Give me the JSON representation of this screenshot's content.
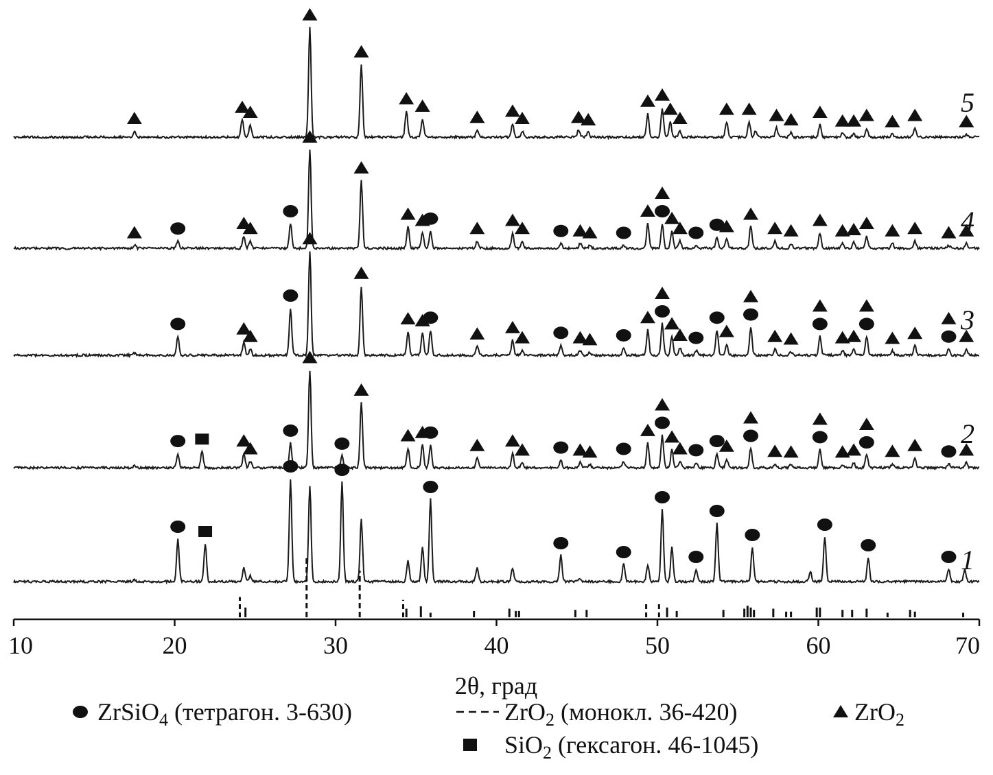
{
  "chart_data": {
    "type": "line",
    "xlabel": "2θ, град",
    "x_range": [
      10,
      70
    ],
    "x_ticks": [
      10,
      20,
      30,
      40,
      50,
      60,
      70
    ],
    "grid": false,
    "legend": [
      {
        "symbol": "circle",
        "text_main": "ZrSiO",
        "sub": "4",
        "text_rest": " (тетрагон. 3-630)"
      },
      {
        "symbol": "dashed-line",
        "text_main": "ZrO",
        "sub": "2",
        "text_rest": " (монокл. 36-420)"
      },
      {
        "symbol": "triangle",
        "text_main": "ZrO",
        "sub": "2",
        "text_rest": ""
      },
      {
        "symbol": "square",
        "text_main": "SiO",
        "sub": "2",
        "text_rest": " (гексагон. 46-1045)"
      }
    ],
    "series": [
      {
        "name": "1",
        "peaks": [
          [
            17.5,
            3
          ],
          [
            20.2,
            62
          ],
          [
            21.9,
            55
          ],
          [
            24.3,
            20
          ],
          [
            24.7,
            8
          ],
          [
            27.2,
            150
          ],
          [
            28.4,
            140
          ],
          [
            30.4,
            145
          ],
          [
            31.6,
            90
          ],
          [
            34.5,
            30
          ],
          [
            35.4,
            50
          ],
          [
            35.9,
            120
          ],
          [
            38.8,
            20
          ],
          [
            41.0,
            20
          ],
          [
            44.0,
            38
          ],
          [
            45.2,
            5
          ],
          [
            47.9,
            25
          ],
          [
            49.4,
            25
          ],
          [
            50.3,
            105
          ],
          [
            50.9,
            50
          ],
          [
            52.4,
            18
          ],
          [
            53.7,
            85
          ],
          [
            55.9,
            50
          ],
          [
            59.5,
            15
          ],
          [
            60.4,
            65
          ],
          [
            63.1,
            35
          ],
          [
            68.1,
            18
          ],
          [
            69.1,
            18
          ]
        ],
        "circles": [
          20.2,
          27.2,
          30.4,
          35.9,
          44.0,
          47.9,
          50.3,
          52.4,
          53.7,
          55.9,
          60.4,
          63.1,
          68.1
        ],
        "triangles": [],
        "squares": [
          21.9
        ]
      },
      {
        "name": "2",
        "peaks": [
          [
            17.5,
            3
          ],
          [
            20.2,
            22
          ],
          [
            21.7,
            25
          ],
          [
            24.3,
            22
          ],
          [
            24.7,
            10
          ],
          [
            27.2,
            38
          ],
          [
            28.4,
            150
          ],
          [
            30.4,
            18
          ],
          [
            31.6,
            100
          ],
          [
            34.5,
            30
          ],
          [
            35.4,
            35
          ],
          [
            35.9,
            35
          ],
          [
            38.8,
            15
          ],
          [
            41.0,
            22
          ],
          [
            41.6,
            8
          ],
          [
            44.0,
            12
          ],
          [
            45.2,
            8
          ],
          [
            45.8,
            5
          ],
          [
            47.9,
            10
          ],
          [
            49.4,
            38
          ],
          [
            50.3,
            50
          ],
          [
            50.9,
            28
          ],
          [
            51.4,
            10
          ],
          [
            52.4,
            8
          ],
          [
            53.7,
            22
          ],
          [
            54.3,
            14
          ],
          [
            55.8,
            30
          ],
          [
            57.3,
            6
          ],
          [
            58.3,
            5
          ],
          [
            60.1,
            28
          ],
          [
            61.5,
            5
          ],
          [
            62.2,
            8
          ],
          [
            63.0,
            20
          ],
          [
            64.6,
            6
          ],
          [
            66.0,
            15
          ],
          [
            68.1,
            6
          ],
          [
            69.2,
            8
          ]
        ],
        "circles": [
          20.2,
          27.2,
          30.4,
          35.9,
          44.0,
          47.9,
          50.3,
          52.4,
          53.7,
          55.8,
          60.1,
          63.0,
          68.1
        ],
        "triangles": [
          24.3,
          24.7,
          28.4,
          31.6,
          34.5,
          35.4,
          38.8,
          41.0,
          41.6,
          45.2,
          45.8,
          49.4,
          50.3,
          50.9,
          51.4,
          54.3,
          55.8,
          57.3,
          58.3,
          60.1,
          61.5,
          62.2,
          63.0,
          64.6,
          66.0,
          69.2
        ],
        "squares": [
          21.7
        ]
      },
      {
        "name": "3",
        "peaks": [
          [
            17.5,
            3
          ],
          [
            20.2,
            30
          ],
          [
            24.3,
            22
          ],
          [
            24.7,
            10
          ],
          [
            27.2,
            75
          ],
          [
            28.4,
            165
          ],
          [
            31.6,
            110
          ],
          [
            34.5,
            38
          ],
          [
            35.4,
            35
          ],
          [
            35.9,
            40
          ],
          [
            38.8,
            14
          ],
          [
            41.0,
            24
          ],
          [
            41.6,
            8
          ],
          [
            44.0,
            16
          ],
          [
            45.2,
            8
          ],
          [
            45.8,
            5
          ],
          [
            47.9,
            12
          ],
          [
            49.4,
            40
          ],
          [
            50.3,
            50
          ],
          [
            50.9,
            30
          ],
          [
            51.4,
            12
          ],
          [
            52.4,
            8
          ],
          [
            53.7,
            40
          ],
          [
            54.3,
            18
          ],
          [
            55.8,
            45
          ],
          [
            57.3,
            10
          ],
          [
            58.3,
            6
          ],
          [
            60.1,
            30
          ],
          [
            61.5,
            8
          ],
          [
            62.2,
            10
          ],
          [
            63.0,
            30
          ],
          [
            64.6,
            7
          ],
          [
            66.0,
            15
          ],
          [
            68.1,
            10
          ],
          [
            69.2,
            10
          ]
        ],
        "circles": [
          20.2,
          27.2,
          35.9,
          44.0,
          47.9,
          50.3,
          52.4,
          53.7,
          55.8,
          60.1,
          63.0,
          68.1
        ],
        "triangles": [
          24.3,
          24.7,
          28.4,
          31.6,
          34.5,
          35.4,
          38.8,
          41.0,
          41.6,
          45.2,
          45.8,
          49.4,
          50.3,
          50.9,
          51.4,
          54.3,
          55.8,
          57.3,
          58.3,
          60.1,
          61.5,
          62.2,
          63.0,
          64.6,
          66.0,
          68.1,
          69.2
        ],
        "squares": []
      },
      {
        "name": "4",
        "peaks": [
          [
            17.5,
            5
          ],
          [
            20.2,
            12
          ],
          [
            24.3,
            20
          ],
          [
            24.7,
            12
          ],
          [
            27.2,
            40
          ],
          [
            28.4,
            160
          ],
          [
            31.6,
            110
          ],
          [
            34.5,
            35
          ],
          [
            35.4,
            25
          ],
          [
            35.9,
            28
          ],
          [
            38.8,
            12
          ],
          [
            41.0,
            25
          ],
          [
            41.6,
            12
          ],
          [
            44.0,
            8
          ],
          [
            45.2,
            8
          ],
          [
            45.8,
            5
          ],
          [
            47.9,
            5
          ],
          [
            49.4,
            40
          ],
          [
            50.3,
            40
          ],
          [
            50.9,
            28
          ],
          [
            51.4,
            12
          ],
          [
            52.4,
            5
          ],
          [
            53.7,
            18
          ],
          [
            54.3,
            15
          ],
          [
            55.8,
            35
          ],
          [
            57.3,
            12
          ],
          [
            58.3,
            8
          ],
          [
            60.1,
            25
          ],
          [
            61.5,
            8
          ],
          [
            62.2,
            10
          ],
          [
            63.0,
            20
          ],
          [
            64.6,
            8
          ],
          [
            66.0,
            12
          ],
          [
            68.1,
            5
          ],
          [
            69.2,
            8
          ]
        ],
        "circles": [
          20.2,
          27.2,
          35.9,
          44.0,
          47.9,
          50.3,
          52.4,
          53.7
        ],
        "triangles": [
          17.5,
          24.3,
          24.7,
          28.4,
          31.6,
          34.5,
          35.4,
          38.8,
          41.0,
          41.6,
          45.2,
          45.8,
          49.4,
          50.3,
          50.9,
          51.4,
          54.3,
          55.8,
          57.3,
          58.3,
          60.1,
          61.5,
          62.2,
          63.0,
          64.6,
          66.0,
          68.1,
          69.2
        ],
        "squares": []
      },
      {
        "name": "5",
        "peaks": [
          [
            17.5,
            10
          ],
          [
            24.2,
            28
          ],
          [
            24.7,
            20
          ],
          [
            28.4,
            178
          ],
          [
            31.6,
            118
          ],
          [
            34.4,
            42
          ],
          [
            35.4,
            30
          ],
          [
            38.8,
            12
          ],
          [
            41.0,
            22
          ],
          [
            41.6,
            10
          ],
          [
            45.1,
            12
          ],
          [
            45.7,
            8
          ],
          [
            49.4,
            38
          ],
          [
            50.3,
            48
          ],
          [
            50.8,
            25
          ],
          [
            51.4,
            10
          ],
          [
            54.3,
            25
          ],
          [
            55.7,
            25
          ],
          [
            56.1,
            10
          ],
          [
            57.4,
            15
          ],
          [
            58.3,
            8
          ],
          [
            60.1,
            20
          ],
          [
            61.5,
            6
          ],
          [
            62.2,
            6
          ],
          [
            63.0,
            15
          ],
          [
            64.6,
            5
          ],
          [
            66.0,
            15
          ],
          [
            69.2,
            5
          ]
        ],
        "circles": [],
        "triangles": [
          17.5,
          24.2,
          24.7,
          28.4,
          31.6,
          34.4,
          35.4,
          38.8,
          41.0,
          41.6,
          45.1,
          45.7,
          49.4,
          50.3,
          50.8,
          51.4,
          54.3,
          55.7,
          57.4,
          58.3,
          60.1,
          61.5,
          62.2,
          63.0,
          64.6,
          66.0,
          69.2
        ],
        "squares": []
      }
    ],
    "reference_sticks": [
      [
        24.05,
        30
      ],
      [
        24.4,
        12
      ],
      [
        28.2,
        100
      ],
      [
        31.5,
        75
      ],
      [
        34.2,
        25
      ],
      [
        34.4,
        10
      ],
      [
        35.3,
        14
      ],
      [
        35.9,
        3
      ],
      [
        38.6,
        6
      ],
      [
        40.8,
        10
      ],
      [
        41.2,
        6
      ],
      [
        41.4,
        6
      ],
      [
        44.9,
        8
      ],
      [
        45.6,
        8
      ],
      [
        49.3,
        20
      ],
      [
        50.1,
        22
      ],
      [
        50.6,
        12
      ],
      [
        51.2,
        6
      ],
      [
        54.1,
        8
      ],
      [
        55.4,
        10
      ],
      [
        55.6,
        15
      ],
      [
        55.8,
        12
      ],
      [
        56.0,
        8
      ],
      [
        57.2,
        10
      ],
      [
        58.0,
        5
      ],
      [
        58.3,
        5
      ],
      [
        59.9,
        12
      ],
      [
        60.1,
        12
      ],
      [
        61.5,
        8
      ],
      [
        62.1,
        8
      ],
      [
        63.0,
        10
      ],
      [
        64.3,
        3
      ],
      [
        65.7,
        8
      ],
      [
        66.0,
        5
      ],
      [
        69.0,
        3
      ]
    ]
  }
}
